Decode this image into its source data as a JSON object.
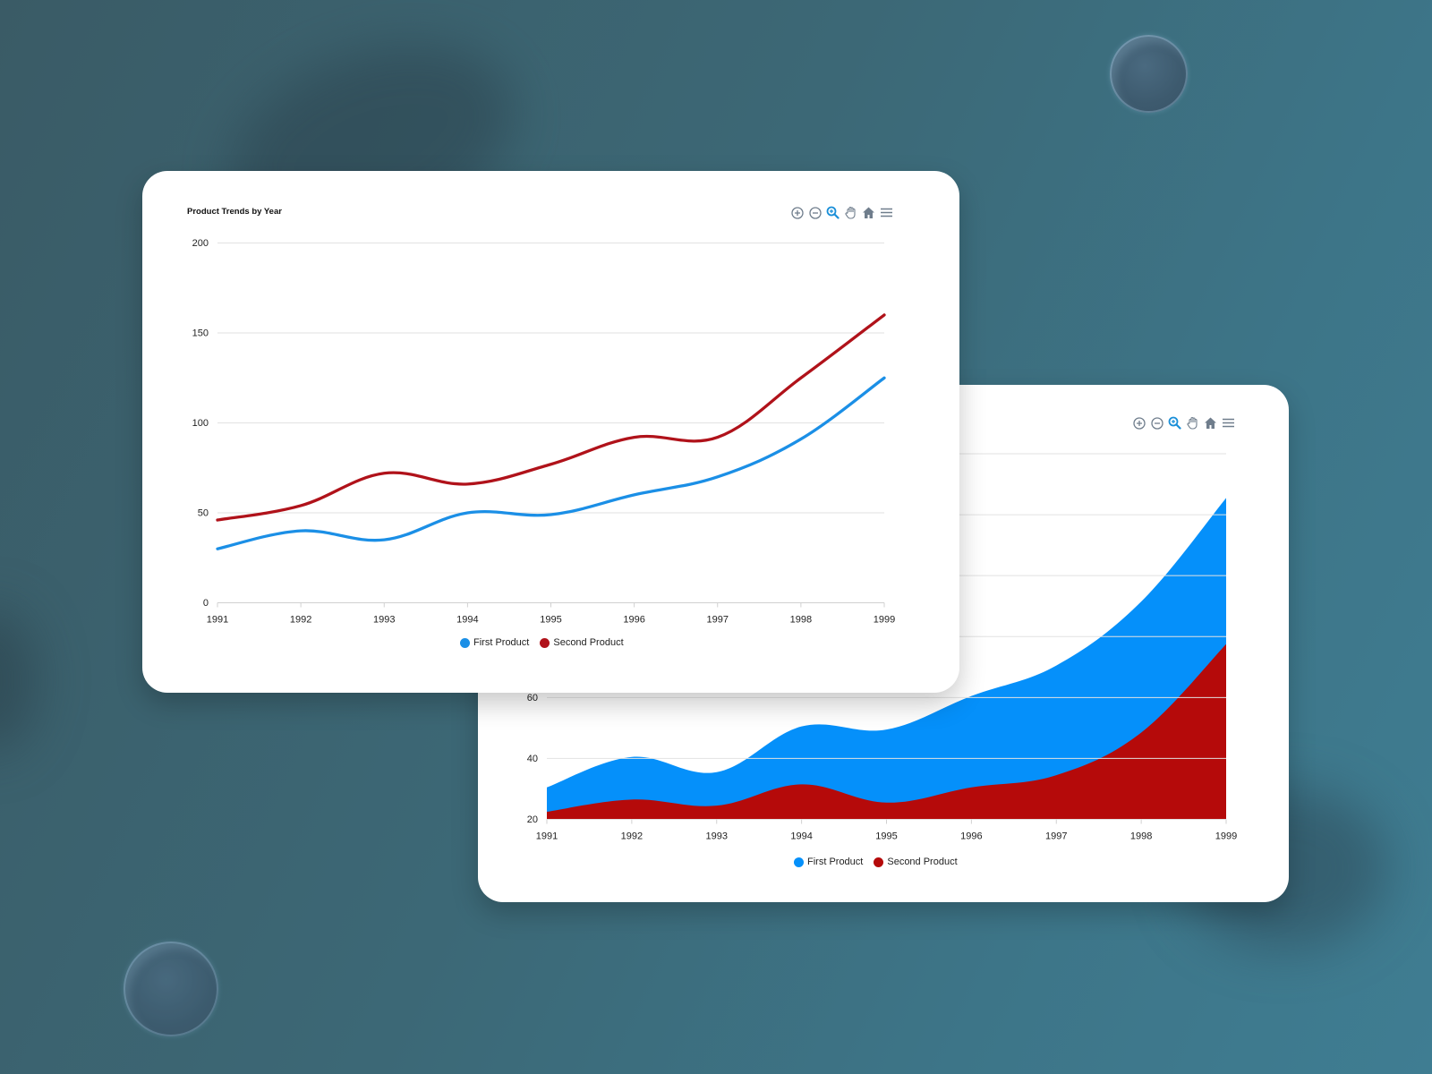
{
  "colors": {
    "first": "#1b8fe6",
    "second": "#b0121a",
    "area_first": "#0590fa",
    "area_second": "#b50a0a",
    "grid": "#e2e2e2",
    "icon": "#6f7d8c",
    "icon_active": "#1a8fd8"
  },
  "toolbar": {
    "zoom_in": "zoom-in",
    "zoom_out": "zoom-out",
    "selection_zoom": "selection-zoom",
    "pan": "pan",
    "reset": "reset-zoom",
    "menu": "menu"
  },
  "line_chart": {
    "title": "Product Trends by Year",
    "legend": [
      "First Product",
      "Second Product"
    ]
  },
  "area_chart": {
    "legend": [
      "First Product",
      "Second Product"
    ]
  },
  "chart_data": [
    {
      "type": "line",
      "title": "Product Trends by Year",
      "xlabel": "",
      "ylabel": "",
      "categories": [
        "1991",
        "1992",
        "1993",
        "1994",
        "1995",
        "1996",
        "1997",
        "1998",
        "1999"
      ],
      "series": [
        {
          "name": "First Product",
          "values": [
            30,
            40,
            35,
            50,
            49,
            60,
            70,
            91,
            125
          ]
        },
        {
          "name": "Second Product",
          "values": [
            46,
            54,
            72,
            66,
            77,
            92,
            92,
            125,
            160
          ]
        }
      ],
      "ylim": [
        0,
        200
      ],
      "yticks": [
        0,
        50,
        100,
        150,
        200
      ],
      "grid": true,
      "curve": "smooth",
      "legend_position": "bottom"
    },
    {
      "type": "area",
      "title": "",
      "xlabel": "",
      "ylabel": "",
      "categories": [
        "1991",
        "1992",
        "1993",
        "1994",
        "1995",
        "1996",
        "1997",
        "1998",
        "1999"
      ],
      "series": [
        {
          "name": "First Product",
          "values": [
            30.5,
            40.5,
            35.5,
            50.5,
            49.5,
            60.5,
            70.5,
            91.5,
            125.5
          ]
        },
        {
          "name": "Second Product",
          "values": [
            22.5,
            26.5,
            24.5,
            31.5,
            25.5,
            30.5,
            34.5,
            48.5,
            77.5
          ]
        }
      ],
      "ylim": [
        20,
        140
      ],
      "yticks": [
        20,
        40,
        60,
        80,
        100,
        120,
        140
      ],
      "visible_yticks": [
        20,
        40,
        60
      ],
      "grid": true,
      "curve": "smooth",
      "legend_position": "bottom"
    }
  ]
}
